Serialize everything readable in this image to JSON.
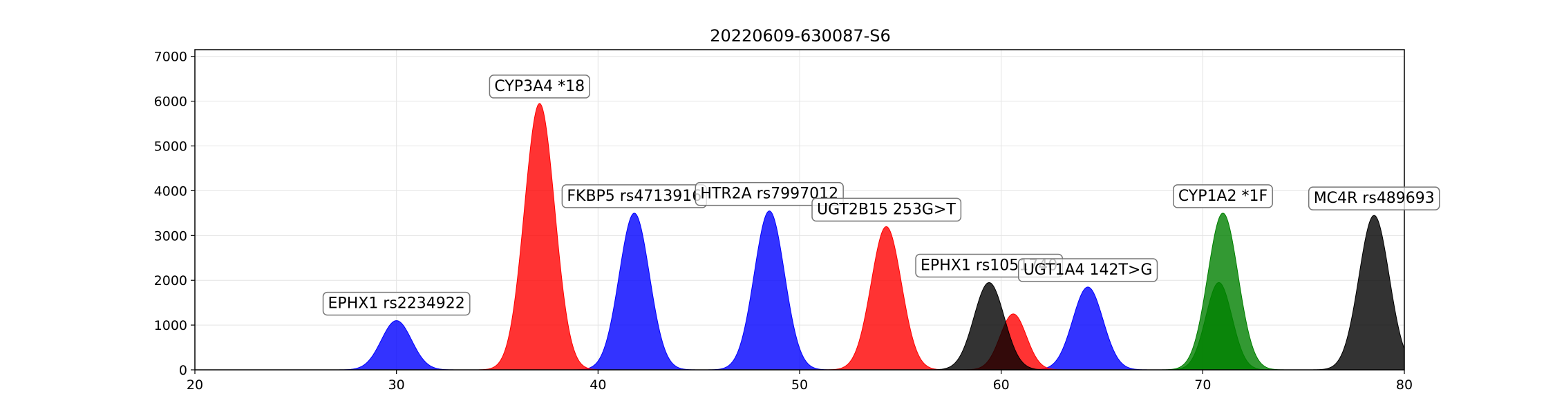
{
  "chart_data": {
    "type": "area",
    "title": "20220609-630087-S6",
    "xlabel": "",
    "ylabel": "",
    "xlim": [
      20,
      80
    ],
    "ylim": [
      0,
      7150
    ],
    "x_ticks": [
      20,
      30,
      40,
      50,
      60,
      70,
      80
    ],
    "y_ticks": [
      0,
      1000,
      2000,
      3000,
      4000,
      5000,
      6000,
      7000
    ],
    "grid": true,
    "series": [
      {
        "color": "#0000ff",
        "peaks": [
          {
            "x": 30.0,
            "height": 1100,
            "sigma": 0.75
          },
          {
            "x": 41.8,
            "height": 3500,
            "sigma": 0.75
          },
          {
            "x": 48.5,
            "height": 3550,
            "sigma": 0.75
          },
          {
            "x": 64.3,
            "height": 1850,
            "sigma": 0.75
          }
        ]
      },
      {
        "color": "#ff0000",
        "peaks": [
          {
            "x": 37.1,
            "height": 5950,
            "sigma": 0.75
          },
          {
            "x": 54.3,
            "height": 3200,
            "sigma": 0.75
          },
          {
            "x": 60.6,
            "height": 1250,
            "sigma": 0.65
          }
        ]
      },
      {
        "color": "#000000",
        "peaks": [
          {
            "x": 59.4,
            "height": 1950,
            "sigma": 0.75
          },
          {
            "x": 78.5,
            "height": 3450,
            "sigma": 0.75
          }
        ]
      },
      {
        "color": "#008000",
        "peaks": [
          {
            "x": 71.0,
            "height": 3500,
            "sigma": 0.75
          },
          {
            "x": 70.8,
            "height": 1950,
            "sigma": 0.65
          }
        ]
      }
    ],
    "annotations": [
      {
        "text": "EPHX1 rs2234922",
        "x": 30.0,
        "y": 1500
      },
      {
        "text": "CYP3A4 *18",
        "x": 37.1,
        "y": 6350
      },
      {
        "text": "FKBP5 rs4713916",
        "x": 41.8,
        "y": 3900
      },
      {
        "text": "HTR2A rs7997012",
        "x": 48.5,
        "y": 3950
      },
      {
        "text": "UGT2B15 253G>T",
        "x": 54.3,
        "y": 3600
      },
      {
        "text": "EPHX1 rs1051740",
        "x": 59.4,
        "y": 2350
      },
      {
        "text": "UGT1A4 142T>G",
        "x": 64.3,
        "y": 2250
      },
      {
        "text": "CYP1A2 *1F",
        "x": 71.0,
        "y": 3900
      },
      {
        "text": "MC4R rs489693",
        "x": 78.5,
        "y": 3850
      }
    ]
  }
}
